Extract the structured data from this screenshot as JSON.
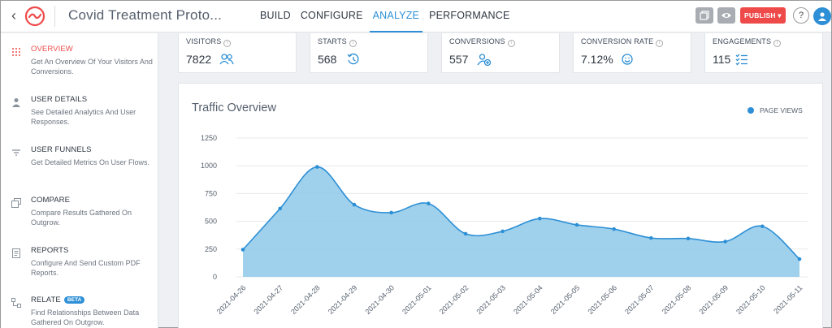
{
  "header": {
    "title": "Covid Treatment Proto...",
    "tabs": [
      {
        "label": "BUILD",
        "active": false
      },
      {
        "label": "CONFIGURE",
        "active": false
      },
      {
        "label": "ANALYZE",
        "active": true
      },
      {
        "label": "PERFORMANCE",
        "active": false
      }
    ],
    "publish_label": "PUBLISH",
    "help_label": "?",
    "colors": {
      "accent": "#2d8fd5",
      "publish": "#ef4a4a",
      "logo": "#ef4a4a"
    }
  },
  "sidebar": {
    "items": [
      {
        "title": "OVERVIEW",
        "desc": "Get An Overview Of Your Visitors And Conversions.",
        "icon": "grid-dots-icon",
        "active": true
      },
      {
        "title": "USER DETAILS",
        "desc": "See Detailed Analytics And User Responses.",
        "icon": "user-icon",
        "active": false
      },
      {
        "title": "USER FUNNELS",
        "desc": "Get Detailed Metrics On User Flows.",
        "icon": "funnel-icon",
        "active": false
      },
      {
        "title": "COMPARE",
        "desc": "Compare Results Gathered On Outgrow.",
        "icon": "compare-icon",
        "active": false
      },
      {
        "title": "REPORTS",
        "desc": "Configure And Send Custom PDF Reports.",
        "icon": "report-icon",
        "active": false
      },
      {
        "title": "RELATE",
        "badge": "BETA",
        "desc": "Find Relationships Between Data Gathered On Outgrow.",
        "icon": "relate-icon",
        "active": false
      }
    ]
  },
  "stats": [
    {
      "label": "VISITORS",
      "value": "7822",
      "icon": "users-icon"
    },
    {
      "label": "STARTS",
      "value": "568",
      "icon": "history-icon"
    },
    {
      "label": "CONVERSIONS",
      "value": "557",
      "icon": "user-plus-icon"
    },
    {
      "label": "CONVERSION RATE",
      "value": "7.12%",
      "icon": "smile-icon"
    },
    {
      "label": "ENGAGEMENTS",
      "value": "115",
      "icon": "checklist-icon"
    }
  ],
  "traffic": {
    "title": "Traffic Overview",
    "legend": "PAGE VIEWS"
  },
  "chart_data": {
    "type": "area",
    "title": "Traffic Overview",
    "x": [
      "2021-04-26",
      "2021-04-27",
      "2021-04-28",
      "2021-04-29",
      "2021-04-30",
      "2021-05-01",
      "2021-05-02",
      "2021-05-03",
      "2021-05-04",
      "2021-05-05",
      "2021-05-06",
      "2021-05-07",
      "2021-05-08",
      "2021-05-09",
      "2021-05-10",
      "2021-05-11"
    ],
    "series": [
      {
        "name": "PAGE VIEWS",
        "values": [
          245,
          615,
          990,
          650,
          578,
          660,
          388,
          410,
          525,
          468,
          430,
          350,
          345,
          318,
          455,
          160
        ]
      }
    ],
    "yticks": [
      0,
      250,
      500,
      750,
      1000,
      1250
    ],
    "ylim": [
      0,
      1250
    ],
    "grid": true,
    "legend_position": "top-right",
    "color": "#2d8fd5",
    "fill": "#8ec9ea"
  }
}
